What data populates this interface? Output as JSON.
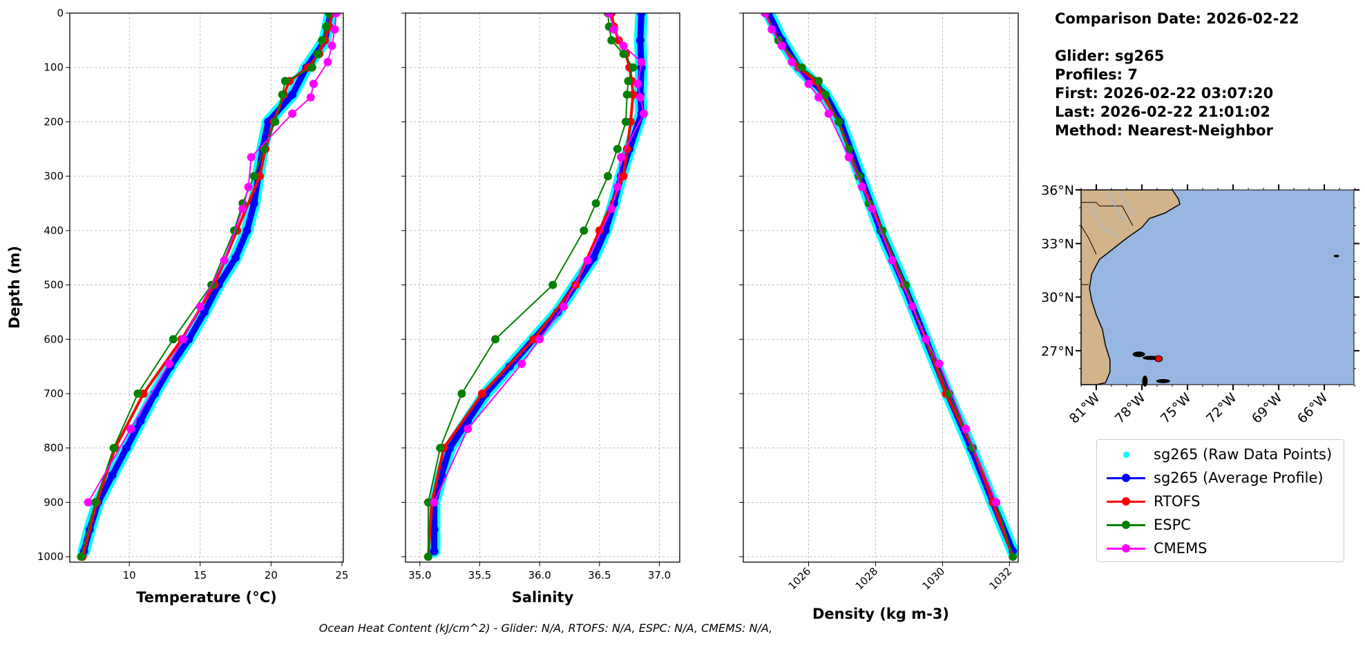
{
  "info": {
    "comparison_date": "Comparison Date: 2026-02-22",
    "glider": "Glider: sg265",
    "profiles": "Profiles: 7",
    "first": "First: 2026-02-22 03:07:20",
    "last": "Last: 2026-02-22 21:01:02",
    "method": "Method: Nearest-Neighbor"
  },
  "footer": "Ocean Heat Content (kJ/cm^2) - Glider: N/A,  RTOFS: N/A,  ESPC: N/A,  CMEMS: N/A,",
  "legend": [
    {
      "label": "sg265 (Raw Data Points)",
      "color": "#00ffff",
      "style": "dot"
    },
    {
      "label": "sg265 (Average Profile)",
      "color": "#0000ff",
      "style": "line-dot"
    },
    {
      "label": "RTOFS",
      "color": "#ff0000",
      "style": "line-dot"
    },
    {
      "label": "ESPC",
      "color": "#008000",
      "style": "line-dot"
    },
    {
      "label": "CMEMS",
      "color": "#ff00ff",
      "style": "line-dot"
    }
  ],
  "chart_data": [
    {
      "type": "line",
      "xlabel": "Temperature (°C)",
      "ylabel": "Depth (m)",
      "xlim": [
        5.8,
        25.1
      ],
      "ylim": [
        1010,
        0
      ],
      "xticks": [
        10,
        15,
        20,
        25
      ],
      "xtick_labels": [
        "10",
        "15",
        "20",
        "25"
      ],
      "yticks": [
        0,
        100,
        200,
        300,
        400,
        500,
        600,
        700,
        800,
        900,
        1000
      ],
      "ytick_labels": [
        "0",
        "100",
        "200",
        "300",
        "400",
        "500",
        "600",
        "700",
        "800",
        "900",
        "1000"
      ],
      "grid": true,
      "series": {
        "glider": {
          "depth": [
            0,
            50,
            100,
            150,
            200,
            250,
            300,
            350,
            400,
            450,
            500,
            550,
            600,
            650,
            700,
            750,
            800,
            850,
            900,
            950,
            990
          ],
          "values": [
            24.2,
            23.8,
            22.5,
            21.5,
            19.8,
            19.4,
            19.1,
            18.8,
            18.3,
            17.5,
            16.3,
            15.3,
            14.2,
            12.9,
            11.8,
            10.8,
            9.8,
            8.8,
            7.8,
            7.2,
            6.8
          ]
        },
        "rtofs": {
          "depth": [
            0,
            25,
            50,
            75,
            100,
            125,
            150,
            200,
            250,
            300,
            400,
            500,
            600,
            700,
            800,
            900,
            1000
          ],
          "values": [
            24.3,
            24.1,
            23.8,
            23.4,
            22.6,
            21.3,
            20.9,
            20.2,
            19.6,
            19.2,
            17.6,
            16.0,
            13.7,
            11.0,
            9.0,
            7.7,
            6.7
          ]
        },
        "espc": {
          "depth": [
            0,
            25,
            50,
            75,
            100,
            125,
            150,
            200,
            250,
            300,
            350,
            400,
            500,
            600,
            700,
            800,
            900,
            1000
          ],
          "values": [
            24.1,
            23.9,
            23.6,
            23.3,
            22.9,
            21.0,
            20.8,
            20.3,
            19.5,
            18.8,
            18.0,
            17.4,
            15.8,
            13.1,
            10.6,
            8.9,
            7.6,
            6.6
          ]
        },
        "cmems": {
          "depth": [
            0,
            30,
            60,
            90,
            130,
            155,
            185,
            265,
            320,
            360,
            455,
            540,
            600,
            645,
            765,
            900
          ],
          "values": [
            24.6,
            24.5,
            24.3,
            24.0,
            23.0,
            22.8,
            21.5,
            18.6,
            18.4,
            18.0,
            16.7,
            15.0,
            13.8,
            12.8,
            10.1,
            7.1
          ]
        }
      }
    },
    {
      "type": "line",
      "xlabel": "Salinity",
      "xlim": [
        34.88,
        37.17
      ],
      "ylim": [
        1010,
        0
      ],
      "xticks": [
        35.0,
        35.5,
        36.0,
        36.5,
        37.0
      ],
      "xtick_labels": [
        "35.0",
        "35.5",
        "36.0",
        "36.5",
        "37.0"
      ],
      "yticks": [
        0,
        100,
        200,
        300,
        400,
        500,
        600,
        700,
        800,
        900,
        1000
      ],
      "grid": true,
      "series": {
        "glider": {
          "depth": [
            0,
            50,
            100,
            150,
            185,
            250,
            300,
            350,
            400,
            450,
            500,
            550,
            600,
            650,
            700,
            750,
            800,
            850,
            900,
            950,
            990
          ],
          "values": [
            36.85,
            36.84,
            36.85,
            36.84,
            36.85,
            36.75,
            36.68,
            36.62,
            36.55,
            36.45,
            36.3,
            36.15,
            35.95,
            35.75,
            35.55,
            35.4,
            35.25,
            35.18,
            35.12,
            35.12,
            35.12
          ]
        },
        "rtofs": {
          "depth": [
            0,
            25,
            50,
            75,
            100,
            125,
            150,
            200,
            250,
            300,
            400,
            500,
            600,
            700,
            800,
            900,
            1000
          ],
          "values": [
            36.6,
            36.62,
            36.66,
            36.72,
            36.75,
            36.77,
            36.78,
            36.76,
            36.73,
            36.7,
            36.5,
            36.3,
            35.95,
            35.52,
            35.2,
            35.1,
            35.07
          ]
        },
        "espc": {
          "depth": [
            0,
            25,
            50,
            75,
            100,
            125,
            150,
            200,
            250,
            300,
            350,
            400,
            500,
            600,
            700,
            800,
            900,
            1000
          ],
          "values": [
            36.57,
            36.58,
            36.6,
            36.7,
            36.78,
            36.74,
            36.73,
            36.72,
            36.65,
            36.57,
            36.47,
            36.37,
            36.11,
            35.63,
            35.35,
            35.17,
            35.07,
            35.07
          ]
        },
        "cmems": {
          "depth": [
            0,
            30,
            60,
            90,
            130,
            155,
            185,
            265,
            320,
            360,
            455,
            540,
            600,
            645,
            765,
            900
          ],
          "values": [
            36.58,
            36.62,
            36.7,
            36.85,
            36.82,
            36.84,
            36.87,
            36.68,
            36.65,
            36.6,
            36.4,
            36.2,
            36.0,
            35.85,
            35.4,
            35.12
          ]
        }
      }
    },
    {
      "type": "line",
      "xlabel": "Density (kg m-3)",
      "xlim": [
        1024.05,
        1032.26
      ],
      "ylim": [
        1010,
        0
      ],
      "xticks": [
        1026,
        1028,
        1030,
        1032
      ],
      "xtick_labels": [
        "1026",
        "1028",
        "1030",
        "1032"
      ],
      "yticks": [
        0,
        100,
        200,
        300,
        400,
        500,
        600,
        700,
        800,
        900,
        1000
      ],
      "grid": true,
      "series": {
        "glider": {
          "depth": [
            0,
            50,
            100,
            150,
            200,
            300,
            400,
            500,
            600,
            700,
            800,
            900,
            990
          ],
          "values": [
            1024.8,
            1025.2,
            1025.7,
            1026.5,
            1026.95,
            1027.55,
            1028.15,
            1028.85,
            1029.5,
            1030.15,
            1030.85,
            1031.5,
            1032.1
          ]
        },
        "rtofs": {
          "depth": [
            0,
            50,
            100,
            125,
            150,
            200,
            250,
            300,
            400,
            500,
            600,
            700,
            800,
            900,
            1000
          ],
          "values": [
            1024.7,
            1025.1,
            1025.7,
            1026.2,
            1026.4,
            1026.9,
            1027.2,
            1027.5,
            1028.2,
            1028.85,
            1029.5,
            1030.1,
            1030.9,
            1031.5,
            1032.1
          ]
        },
        "espc": {
          "depth": [
            0,
            50,
            100,
            125,
            150,
            200,
            250,
            300,
            350,
            400,
            500,
            600,
            700,
            800,
            900,
            1000
          ],
          "values": [
            1024.7,
            1025.1,
            1025.8,
            1026.3,
            1026.5,
            1026.9,
            1027.2,
            1027.5,
            1027.8,
            1028.2,
            1028.9,
            1029.5,
            1030.2,
            1030.9,
            1031.6,
            1032.1
          ]
        },
        "cmems": {
          "depth": [
            0,
            30,
            60,
            90,
            130,
            155,
            185,
            265,
            320,
            360,
            455,
            540,
            600,
            645,
            765,
            900
          ],
          "values": [
            1024.7,
            1024.9,
            1025.2,
            1025.5,
            1026.0,
            1026.3,
            1026.6,
            1027.2,
            1027.6,
            1027.9,
            1028.5,
            1029.1,
            1029.5,
            1029.9,
            1030.7,
            1031.6
          ]
        }
      }
    }
  ],
  "map": {
    "lon_range": [
      -82.0,
      -64.05
    ],
    "lat_range": [
      25.1,
      36.0
    ],
    "lon_ticks": [
      -81,
      -78,
      -75,
      -72,
      -69,
      -66
    ],
    "lon_tick_labels": [
      "81°W",
      "78°W",
      "75°W",
      "72°W",
      "69°W",
      "66°W"
    ],
    "lat_ticks": [
      27,
      30,
      33,
      36
    ],
    "lat_tick_labels": [
      "27°N",
      "30°N",
      "33°N",
      "36°N"
    ],
    "ocean_color": "#97b6e1",
    "land_color": "#d1b48c",
    "glider_location": [
      -76.9,
      26.55
    ],
    "glider_marker_color": "#ff0000"
  },
  "colors": {
    "raw": "#00ffff",
    "glider": "#0000ff",
    "rtofs": "#ff0000",
    "espc": "#008000",
    "cmems": "#ff00ff"
  }
}
